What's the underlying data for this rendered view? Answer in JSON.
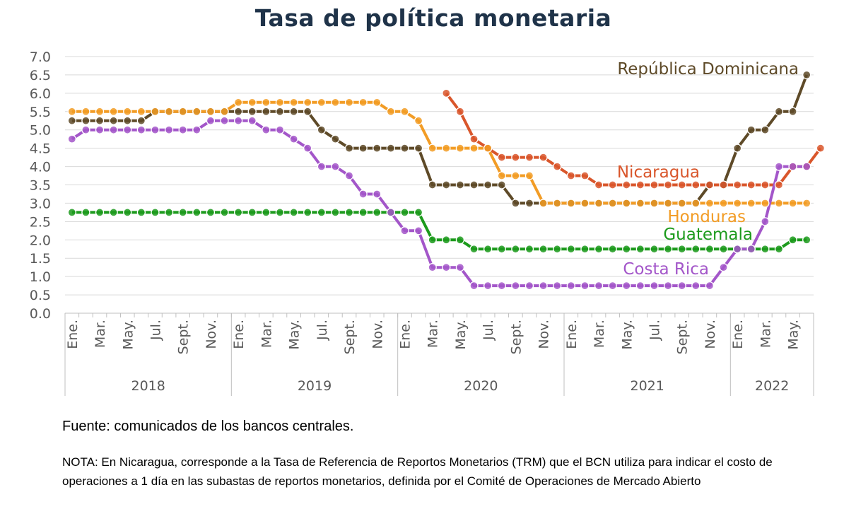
{
  "title": "Tasa de política monetaria",
  "source": "Fuente: comunicados de los bancos centrales.",
  "note": "NOTA: En Nicaragua, corresponde a la Tasa de Referencia de Reportos Monetarios (TRM) que el BCN utiliza para indicar el costo de operaciones a 1 día en las subastas de reportos monetarios, definida por el Comité de Operaciones de Mercado Abierto",
  "chart_data": {
    "type": "line",
    "ylim": [
      0,
      7
    ],
    "y_ticks": [
      "0.0",
      "0.5",
      "1.0",
      "1.5",
      "2.0",
      "2.5",
      "3.0",
      "3.5",
      "4.0",
      "4.5",
      "5.0",
      "5.5",
      "6.0",
      "6.5",
      "7.0"
    ],
    "grid": "horizontal",
    "month_tick_labels": [
      "Ene.",
      "Mar.",
      "May.",
      "Jul.",
      "Sept.",
      "Nov.",
      "Ene.",
      "Mar.",
      "May.",
      "Jul.",
      "Sept.",
      "Nov.",
      "Ene.",
      "Mar.",
      "May.",
      "Jul.",
      "Sept.",
      "Nov.",
      "Ene.",
      "Mar.",
      "May.",
      "Jul.",
      "Sept.",
      "Nov.",
      "Ene.",
      "Mar.",
      "May."
    ],
    "month_tick_index": [
      0,
      2,
      4,
      6,
      8,
      10,
      12,
      14,
      16,
      18,
      20,
      22,
      24,
      26,
      28,
      30,
      32,
      34,
      36,
      38,
      40,
      42,
      44,
      46,
      48,
      50,
      52
    ],
    "years": [
      {
        "label": "2018",
        "start": 0,
        "end": 12
      },
      {
        "label": "2019",
        "start": 12,
        "end": 24
      },
      {
        "label": "2020",
        "start": 24,
        "end": 36
      },
      {
        "label": "2021",
        "start": 36,
        "end": 48
      },
      {
        "label": "2022",
        "start": 48,
        "end": 54
      }
    ],
    "series": [
      {
        "name": "República Dominicana",
        "color": "#5e4a28",
        "start": 0,
        "values": [
          5.25,
          5.25,
          5.25,
          5.25,
          5.25,
          5.25,
          5.5,
          5.5,
          5.5,
          5.5,
          5.5,
          5.5,
          5.5,
          5.5,
          5.5,
          5.5,
          5.5,
          5.5,
          5.0,
          4.75,
          4.5,
          4.5,
          4.5,
          4.5,
          4.5,
          4.5,
          3.5,
          3.5,
          3.5,
          3.5,
          3.5,
          3.5,
          3.0,
          3.0,
          3.0,
          3.0,
          3.0,
          3.0,
          3.0,
          3.0,
          3.0,
          3.0,
          3.0,
          3.0,
          3.0,
          3.0,
          3.5,
          3.5,
          4.5,
          5.0,
          5.0,
          5.5,
          5.5,
          6.5
        ]
      },
      {
        "name": "Nicaragua",
        "color": "#d9562b",
        "start": 27,
        "values": [
          6.0,
          5.5,
          4.75,
          4.5,
          4.25,
          4.25,
          4.25,
          4.25,
          4.0,
          3.75,
          3.75,
          3.5,
          3.5,
          3.5,
          3.5,
          3.5,
          3.5,
          3.5,
          3.5,
          3.5,
          3.5,
          3.5,
          3.5,
          3.5,
          3.5,
          4.0,
          4.0,
          4.5
        ]
      },
      {
        "name": "Honduras",
        "color": "#f29c25",
        "start": 0,
        "values": [
          5.5,
          5.5,
          5.5,
          5.5,
          5.5,
          5.5,
          5.5,
          5.5,
          5.5,
          5.5,
          5.5,
          5.5,
          5.75,
          5.75,
          5.75,
          5.75,
          5.75,
          5.75,
          5.75,
          5.75,
          5.75,
          5.75,
          5.75,
          5.5,
          5.5,
          5.25,
          4.5,
          4.5,
          4.5,
          4.5,
          4.5,
          3.75,
          3.75,
          3.75,
          3.0,
          3.0,
          3.0,
          3.0,
          3.0,
          3.0,
          3.0,
          3.0,
          3.0,
          3.0,
          3.0,
          3.0,
          3.0,
          3.0,
          3.0,
          3.0,
          3.0,
          3.0,
          3.0,
          3.0
        ]
      },
      {
        "name": "Guatemala",
        "color": "#1c9a1c",
        "start": 0,
        "values": [
          2.75,
          2.75,
          2.75,
          2.75,
          2.75,
          2.75,
          2.75,
          2.75,
          2.75,
          2.75,
          2.75,
          2.75,
          2.75,
          2.75,
          2.75,
          2.75,
          2.75,
          2.75,
          2.75,
          2.75,
          2.75,
          2.75,
          2.75,
          2.75,
          2.75,
          2.75,
          2.0,
          2.0,
          2.0,
          1.75,
          1.75,
          1.75,
          1.75,
          1.75,
          1.75,
          1.75,
          1.75,
          1.75,
          1.75,
          1.75,
          1.75,
          1.75,
          1.75,
          1.75,
          1.75,
          1.75,
          1.75,
          1.75,
          1.75,
          1.75,
          1.75,
          1.75,
          2.0,
          2.0
        ]
      },
      {
        "name": "Costa Rica",
        "color": "#a356c9",
        "start": 0,
        "values": [
          4.75,
          5.0,
          5.0,
          5.0,
          5.0,
          5.0,
          5.0,
          5.0,
          5.0,
          5.0,
          5.25,
          5.25,
          5.25,
          5.25,
          5.0,
          5.0,
          4.75,
          4.5,
          4.0,
          4.0,
          3.75,
          3.25,
          3.25,
          2.75,
          2.25,
          2.25,
          1.25,
          1.25,
          1.25,
          0.75,
          0.75,
          0.75,
          0.75,
          0.75,
          0.75,
          0.75,
          0.75,
          0.75,
          0.75,
          0.75,
          0.75,
          0.75,
          0.75,
          0.75,
          0.75,
          0.75,
          0.75,
          1.25,
          1.75,
          1.75,
          2.5,
          4.0,
          4.0,
          4.0
        ]
      }
    ]
  }
}
